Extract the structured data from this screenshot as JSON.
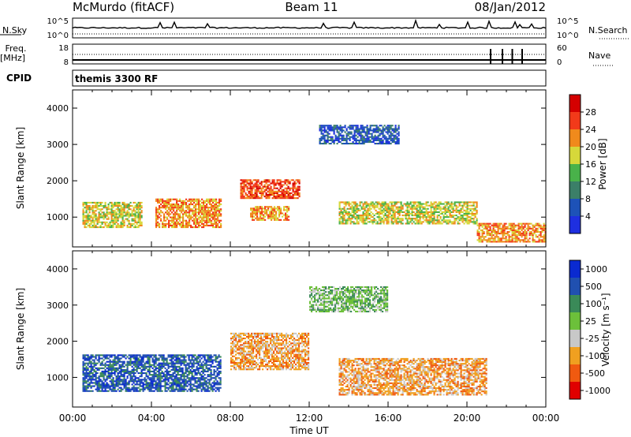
{
  "header": {
    "station": "McMurdo (fitACF)",
    "beam": "Beam 11",
    "date": "08/Jan/2012",
    "cpid_label": "CPID",
    "cpid_value": "themis 3300 RF"
  },
  "panels": {
    "noise": {
      "left_label": "N.Sky",
      "left_ticks": [
        "10^5",
        "10^0"
      ],
      "right_label": "N.Search",
      "right_ticks": [
        "10^5",
        "10^0"
      ]
    },
    "freq": {
      "left_label_1": "Freq.",
      "left_label_2": "[MHz]",
      "left_ticks": [
        "18",
        "8"
      ],
      "right_label": "Nave",
      "right_ticks": [
        "60",
        "0"
      ]
    }
  },
  "colors": {
    "power": [
      "#1e2fe0",
      "#1d52b8",
      "#3b7f68",
      "#49b24a",
      "#d6d83a",
      "#f08a1c",
      "#f23a1a",
      "#d40000"
    ],
    "velocity": [
      "#e00000",
      "#f05a10",
      "#f0a020",
      "#c8c8c8",
      "#6cc03a",
      "#3a8a58",
      "#2050b0",
      "#0a2ad0"
    ]
  },
  "chart_data": [
    {
      "type": "heatmap",
      "name": "Power",
      "ylabel": "Slant Range [km]",
      "yticks": [
        "1000",
        "2000",
        "3000",
        "4000"
      ],
      "ylim": [
        180,
        4500
      ],
      "xlim_hours": [
        0,
        24
      ],
      "colorbar_label": "Power [dB]",
      "colorbar_ticks": [
        "4",
        "8",
        "12",
        "16",
        "20",
        "24",
        "28"
      ],
      "colorbar_range": [
        0,
        30
      ],
      "blobs": [
        {
          "t0": 0.5,
          "t1": 3.5,
          "r0": 700,
          "r1": 1400,
          "value": 18
        },
        {
          "t0": 4.2,
          "t1": 7.5,
          "r0": 700,
          "r1": 1500,
          "value": 22
        },
        {
          "t0": 8.5,
          "t1": 11.5,
          "r0": 1500,
          "r1": 2000,
          "value": 26
        },
        {
          "t0": 9.0,
          "t1": 11.0,
          "r0": 900,
          "r1": 1300,
          "value": 20
        },
        {
          "t0": 12.5,
          "t1": 16.5,
          "r0": 3000,
          "r1": 3500,
          "value": 5
        },
        {
          "t0": 13.5,
          "t1": 20.5,
          "r0": 800,
          "r1": 1400,
          "value": 16
        },
        {
          "t0": 20.5,
          "t1": 24.0,
          "r0": 300,
          "r1": 800,
          "value": 22
        }
      ]
    },
    {
      "type": "heatmap",
      "name": "Velocity",
      "ylabel": "Slant Range [km]",
      "yticks": [
        "1000",
        "2000",
        "3000",
        "4000"
      ],
      "ylim": [
        180,
        4500
      ],
      "xlim_hours": [
        0,
        24
      ],
      "xticks": [
        "00:00",
        "04:00",
        "08:00",
        "12:00",
        "16:00",
        "20:00",
        "00:00"
      ],
      "xlabel": "Time UT",
      "colorbar_label": "Velocity [m s⁻¹]",
      "colorbar_ticks": [
        "-1000",
        "-500",
        "-100",
        "-25",
        "25",
        "100",
        "500",
        "1000"
      ],
      "blobs": [
        {
          "t0": 0.5,
          "t1": 7.5,
          "r0": 600,
          "r1": 1600,
          "value": 200
        },
        {
          "t0": 8.0,
          "t1": 12.0,
          "r0": 1200,
          "r1": 2200,
          "value": -120
        },
        {
          "t0": 13.5,
          "t1": 21.0,
          "r0": 500,
          "r1": 1500,
          "value": -150
        },
        {
          "t0": 12.0,
          "t1": 16.0,
          "r0": 2800,
          "r1": 3500,
          "value": 0
        }
      ]
    }
  ]
}
